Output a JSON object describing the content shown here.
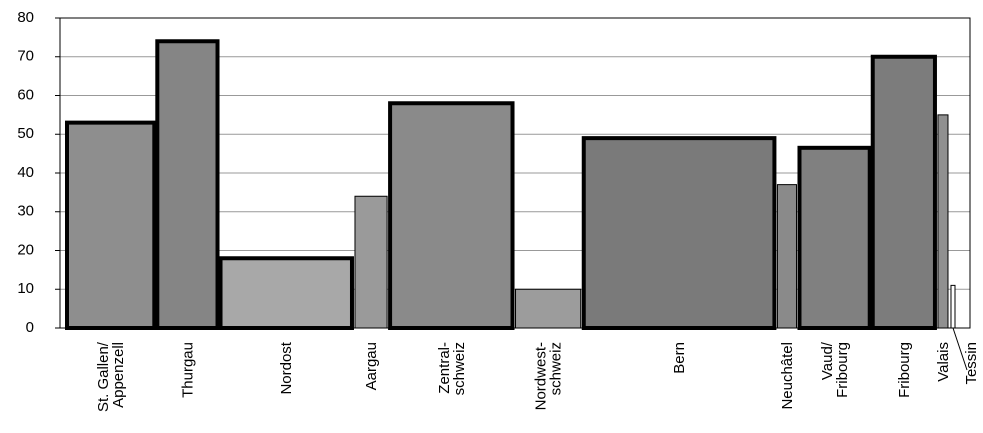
{
  "chart_data": {
    "type": "variable-width-bar",
    "categories": [
      [
        "St. Gallen/",
        "Appenzell"
      ],
      [
        "Thurgau"
      ],
      [
        "Nordost"
      ],
      [
        "Aargau"
      ],
      [
        "Zentral-",
        "schweiz"
      ],
      [
        "Nordwest-",
        "schweiz"
      ],
      [
        "Bern"
      ],
      [
        "Neuchâtel"
      ],
      [
        "Vaud/",
        "Fribourg"
      ],
      [
        "Fribourg"
      ],
      [
        "Valais"
      ],
      [
        "Tessin"
      ]
    ],
    "values": [
      53,
      74,
      18,
      34,
      58,
      10,
      49,
      37,
      46.5,
      70,
      55,
      11
    ],
    "widths": [
      87,
      60,
      131,
      32,
      122,
      65,
      190,
      19,
      70,
      62,
      10,
      4
    ],
    "thick_border": [
      true,
      true,
      true,
      false,
      true,
      false,
      true,
      false,
      true,
      true,
      false,
      false
    ],
    "colors": [
      "#8e8e8e",
      "#858585",
      "#a8a8a8",
      "#9a9a9a",
      "#8a8a8a",
      "#9c9c9c",
      "#7a7a7a",
      "#8a8a8a",
      "#808080",
      "#7c7c7c",
      "#909090",
      "#ffffff"
    ],
    "ylim": [
      0,
      80
    ],
    "yticks": [
      0,
      10,
      20,
      30,
      40,
      50,
      60,
      70,
      80
    ],
    "grid": true
  }
}
